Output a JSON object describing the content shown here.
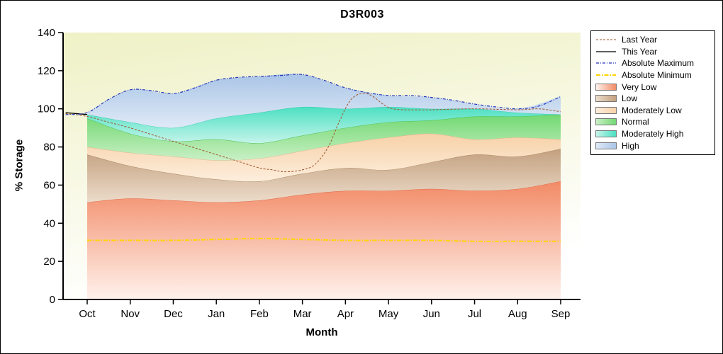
{
  "title": "D3R003",
  "x_axis_label": "Month",
  "y_axis_label": "% Storage",
  "chart_data": {
    "type": "area",
    "title": "D3R003",
    "xlabel": "Month",
    "ylabel": "% Storage",
    "categories": [
      "Oct",
      "Nov",
      "Dec",
      "Jan",
      "Feb",
      "Mar",
      "Apr",
      "May",
      "Jun",
      "Jul",
      "Aug",
      "Sep"
    ],
    "ylim": [
      0,
      140
    ],
    "y_ticks": [
      0,
      20,
      40,
      60,
      80,
      100,
      120,
      140
    ],
    "grid": "off",
    "plot_background": {
      "from": "#ffffff",
      "to": "#eff1c6"
    },
    "bands": [
      {
        "name": "Very Low",
        "upper": [
          51,
          53,
          52,
          51,
          52,
          55,
          57,
          57,
          58,
          57,
          58,
          62
        ],
        "color": "#f28a66",
        "light": "#fff2ec",
        "edge": "#e06a48"
      },
      {
        "name": "Low",
        "upper": [
          76,
          70,
          66,
          63,
          62,
          66,
          69,
          68,
          72,
          76,
          75,
          79
        ],
        "color": "#c3a07e",
        "light": "#ecdccb",
        "edge": "#a98860"
      },
      {
        "name": "Moderately Low",
        "upper": [
          80,
          77,
          75,
          73,
          74,
          78,
          82,
          85,
          87,
          84,
          85,
          84
        ],
        "color": "#f7d1a8",
        "light": "#fdeedd",
        "edge": "#dbb58a"
      },
      {
        "name": "Normal",
        "upper": [
          95,
          87,
          83,
          84,
          82,
          86,
          90,
          93,
          94,
          96,
          96,
          97
        ],
        "color": "#72d872",
        "light": "#c9f0c6",
        "edge": "#4cbf4c"
      },
      {
        "name": "Moderately High",
        "upper": [
          97,
          93,
          90,
          95,
          98,
          101,
          100,
          101,
          100,
          100,
          98,
          97
        ],
        "color": "#4ce0c2",
        "light": "#c5f4ea",
        "edge": "#2cc9a8"
      },
      {
        "name": "High",
        "upper": [
          98,
          110,
          108,
          115,
          117,
          118,
          111,
          107,
          106,
          102.5,
          100,
          106.5
        ],
        "color": "#aac5e6",
        "light": "#dfeaf7",
        "edge": "#8fb0da"
      }
    ],
    "lines": [
      {
        "name": "Absolute Minimum",
        "color": "#ffd400",
        "dash": "6 2 1.5 2",
        "width": 2,
        "x": [
          0,
          1,
          2,
          3,
          4,
          5,
          6,
          7,
          8,
          9,
          10,
          11
        ],
        "values": [
          31,
          31,
          31,
          31.5,
          32,
          31.5,
          31,
          31,
          31,
          30.5,
          30.5,
          30.5
        ]
      },
      {
        "name": "Last Year",
        "color": "#a0562b",
        "dash": "3 2",
        "width": 1,
        "x": [
          -0.5,
          0,
          0.5,
          1,
          1.5,
          2,
          2.5,
          3,
          3.5,
          4,
          4.3,
          4.6,
          5,
          5.3,
          5.6,
          5.85,
          6.1,
          6.35,
          6.6,
          6.9,
          7.1,
          7.4,
          8,
          9,
          10,
          10.5,
          11
        ],
        "values": [
          97.5,
          96,
          93,
          90,
          86.5,
          83,
          79.5,
          76,
          72.5,
          69,
          68,
          67,
          68,
          71,
          80,
          93,
          104,
          108,
          107,
          102,
          100,
          99.5,
          99.5,
          100,
          99.5,
          100,
          98.5
        ]
      },
      {
        "name": "This Year",
        "color": "#000000",
        "dash": "none",
        "width": 1.3,
        "x": [
          -0.5,
          0
        ],
        "values": [
          98,
          97
        ]
      },
      {
        "name": "Absolute Maximum",
        "color": "#2233bb",
        "dash": "4 2 1 2",
        "width": 1.2,
        "x": [
          -0.5,
          0,
          0.5,
          1,
          1.5,
          2,
          2.5,
          3,
          3.5,
          4,
          4.5,
          5,
          5.5,
          6,
          6.5,
          7,
          7.5,
          8,
          8.5,
          9,
          9.5,
          10,
          10.5,
          11
        ],
        "values": [
          97,
          98,
          105,
          110,
          109.5,
          108,
          111,
          115,
          116.5,
          117,
          117.5,
          118,
          115,
          111,
          108.5,
          107,
          107,
          106,
          104.5,
          102.5,
          101,
          100,
          101.5,
          106.5
        ]
      }
    ],
    "legend": {
      "position": "top-right",
      "entries": [
        "Last Year",
        "This Year",
        "Absolute Maximum",
        "Absolute Minimum",
        "Very Low",
        "Low",
        "Moderately Low",
        "Normal",
        "Moderately High",
        "High"
      ]
    }
  }
}
